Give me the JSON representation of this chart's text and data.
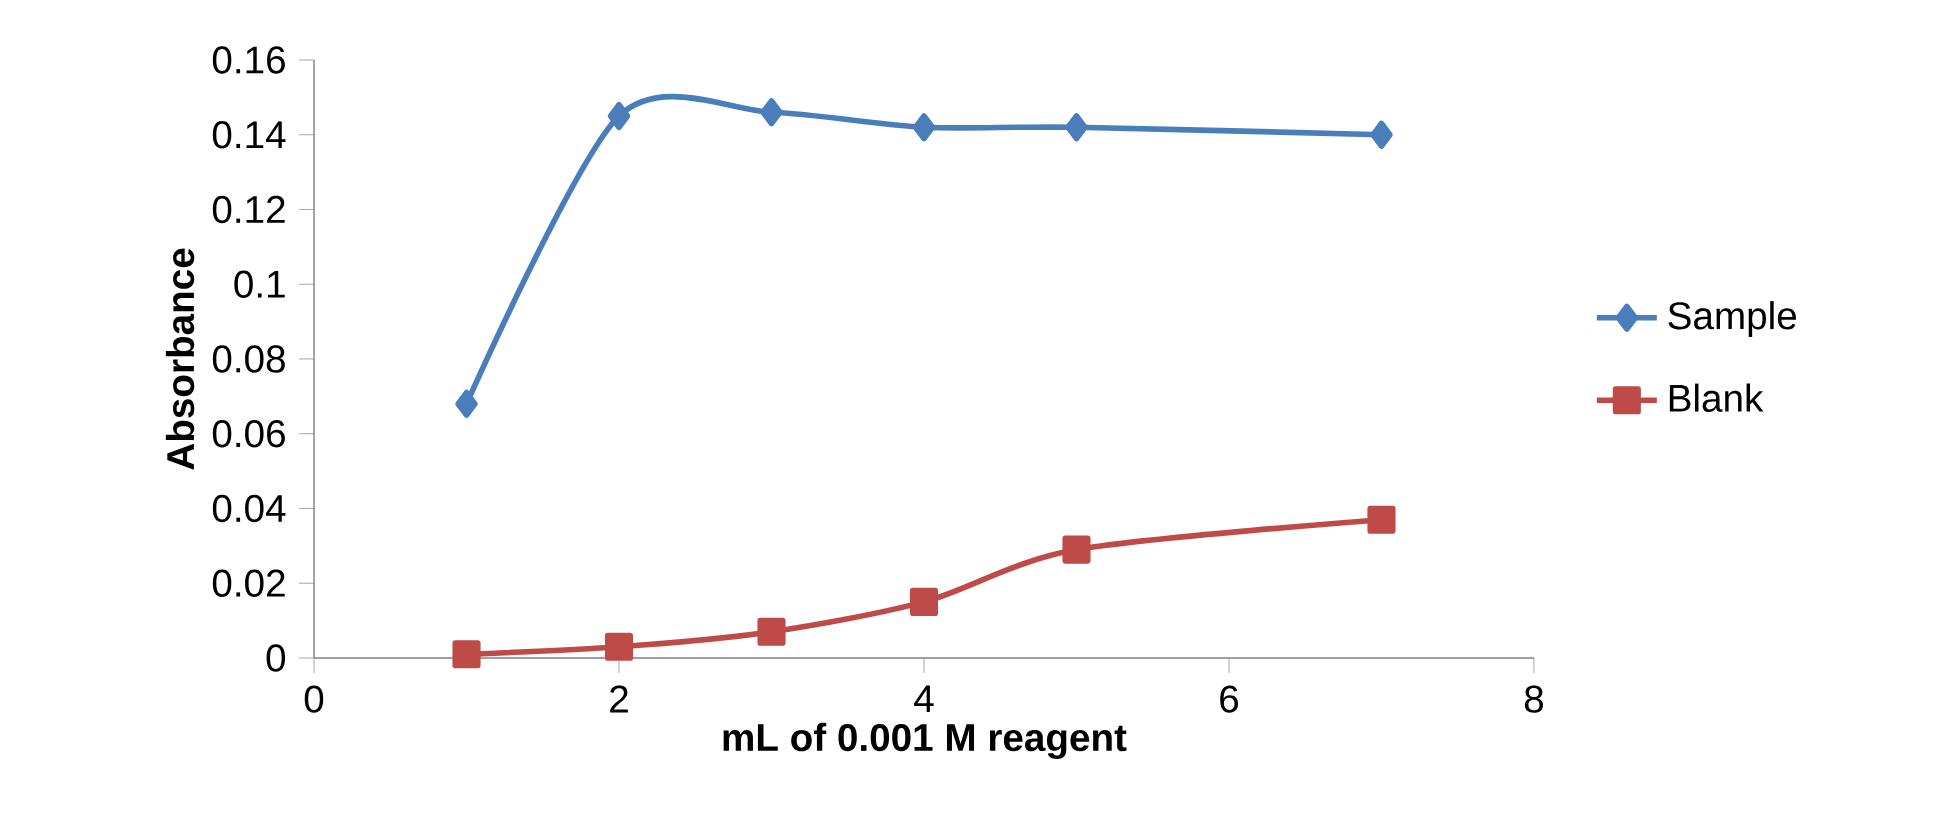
{
  "chart_data": {
    "type": "line",
    "xlabel": "mL of 0.001 M reagent",
    "ylabel": "Absorbance",
    "xlim": [
      0,
      8
    ],
    "xticks": [
      0,
      2,
      4,
      6,
      8
    ],
    "ylim": [
      0,
      0.16
    ],
    "yticks": [
      0,
      0.02,
      0.04,
      0.06,
      0.08,
      {
        "value": 0.1,
        "label": "0.1"
      },
      0.12,
      0.14,
      0.16
    ],
    "grid": false,
    "legend": "right",
    "line_style": "solid",
    "series": [
      {
        "name": "Sample",
        "color": "#4a7ebb",
        "marker": "diamond",
        "x": [
          1,
          2,
          3,
          4,
          5,
          7
        ],
        "values": [
          0.068,
          0.145,
          0.146,
          0.142,
          0.142,
          0.14
        ]
      },
      {
        "name": "Blank",
        "color": "#be4b48",
        "marker": "square",
        "x": [
          1,
          2,
          3,
          4,
          5,
          7
        ],
        "values": [
          0.001,
          0.003,
          0.007,
          0.015,
          0.029,
          0.037
        ]
      }
    ]
  }
}
